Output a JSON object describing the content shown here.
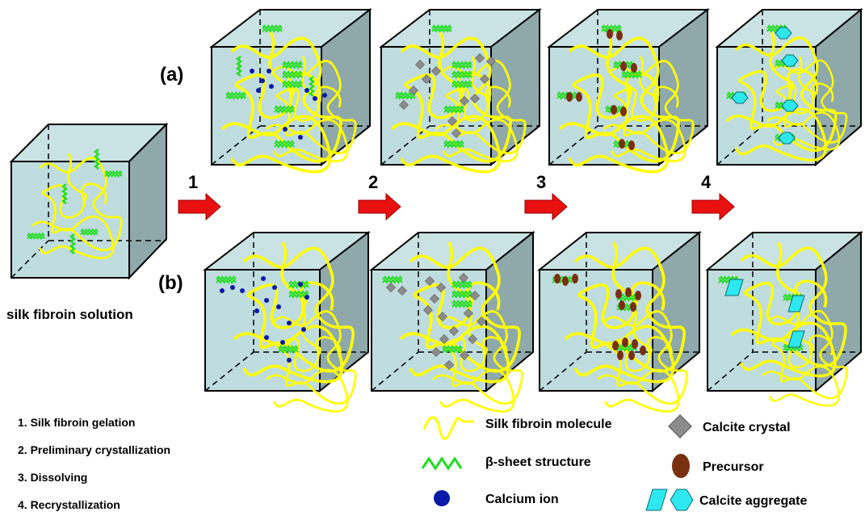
{
  "row_labels": {
    "a": "(a)",
    "b": "(b)"
  },
  "start_label": "silk fibroin solution",
  "arrows": [
    "1",
    "2",
    "3",
    "4"
  ],
  "steps": [
    "1. Silk fibroin gelation",
    "2. Preliminary crystallization",
    "3. Dissolving",
    "4. Recrystallization"
  ],
  "legend": {
    "silk_fibroin_molecule": "Silk fibroin molecule",
    "beta_sheet": "β-sheet structure",
    "calcium_ion": "Calcium ion",
    "calcite_crystal": "Calcite crystal",
    "precursor": "Precursor",
    "calcite_aggregate": "Calcite aggregate"
  },
  "colors": {
    "cube_face": "#b8d8da",
    "cube_side": "#8fa9ab",
    "fibroin": "#ffff00",
    "beta_sheet": "#22dd22",
    "calcium": "#0a1aa8",
    "crystal": "#8c8c8c",
    "precursor": "#7a2f10",
    "aggregate": "#2ee8f0",
    "arrow": "#e81010"
  }
}
